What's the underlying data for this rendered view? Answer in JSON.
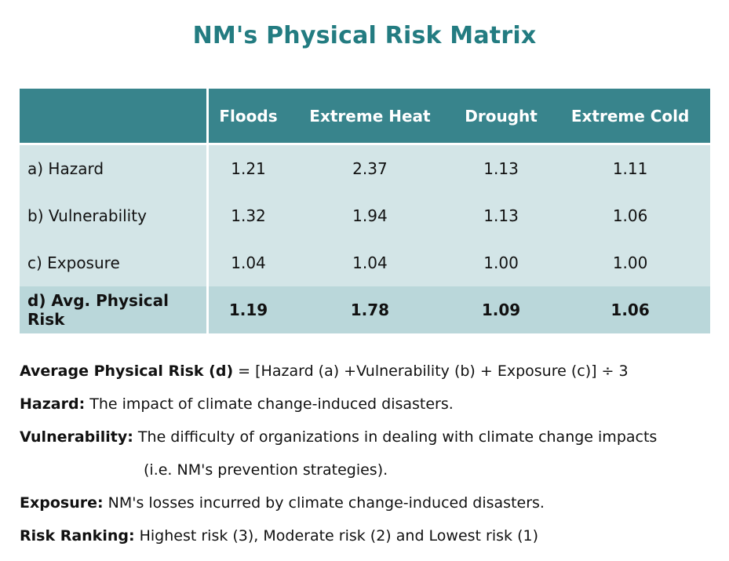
{
  "title": "NM's Physical Risk Matrix",
  "table": {
    "columns": [
      "",
      "Floods",
      "Extreme Heat",
      "Drought",
      "Extreme Cold"
    ],
    "rows": [
      {
        "label": "a) Hazard",
        "values": [
          "1.21",
          "2.37",
          "1.13",
          "1.11"
        ]
      },
      {
        "label": "b) Vulnerability",
        "values": [
          "1.32",
          "1.94",
          "1.13",
          "1.06"
        ]
      },
      {
        "label": "c) Exposure",
        "values": [
          "1.04",
          "1.04",
          "1.00",
          "1.00"
        ]
      },
      {
        "label": "d) Avg. Physical Risk",
        "values": [
          "1.19",
          "1.78",
          "1.09",
          "1.06"
        ]
      }
    ]
  },
  "notes": [
    {
      "term": "Average Physical Risk (d)",
      "text": " = [Hazard (a) +Vulnerability (b) + Exposure (c)] ÷ 3"
    },
    {
      "term": "Hazard:",
      "text": " The impact of climate change-induced disasters."
    },
    {
      "term": "Vulnerability:",
      "text": " The difficulty of organizations in dealing with climate change impacts",
      "cont": "(i.e. NM's prevention strategies)."
    },
    {
      "term": "Exposure:",
      "text": " NM's losses incurred by climate change-induced disasters."
    },
    {
      "term": "Risk Ranking:",
      "text": " Highest risk (3), Moderate risk (2) and Lowest risk (1)"
    }
  ],
  "colors": {
    "title": "#237c81",
    "header": "#38848c",
    "body": "#d3e5e7",
    "avg_row": "#bad7da"
  }
}
